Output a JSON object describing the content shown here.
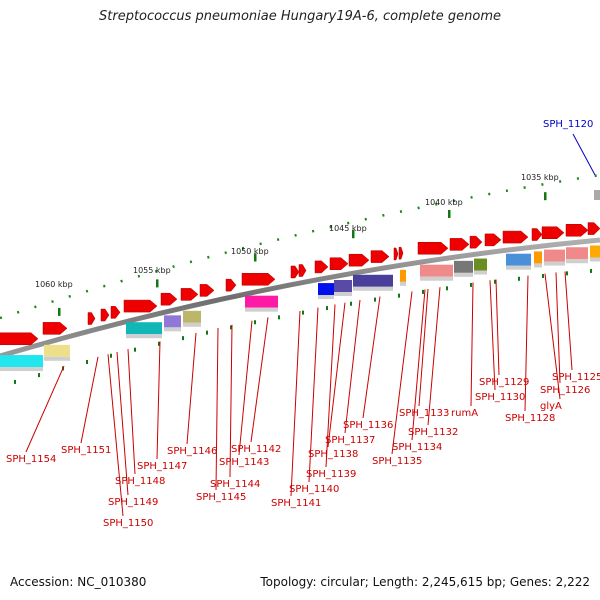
{
  "title": "Streptococcus pneumoniae Hungary19A-6, complete genome",
  "footer": {
    "accession": "Accession: NC_010380",
    "summary": "Topology: circular; Length: 2,245,615 bp; Genes: 2,222"
  },
  "highlight_label": "SPH_1120",
  "scale_labels": [
    "1035 kbp",
    "1040 kbp",
    "1045 kbp",
    "1050 kbp",
    "1055 kbp",
    "1060 kbp"
  ],
  "gene_labels": [
    "SPH_1125",
    "SPH_1126",
    "glyA",
    "SPH_1128",
    "SPH_1129",
    "SPH_1130",
    "rumA",
    "SPH_1132",
    "SPH_1133",
    "SPH_1134",
    "SPH_1135",
    "SPH_1136",
    "SPH_1137",
    "SPH_1138",
    "SPH_1139",
    "SPH_1140",
    "SPH_1141",
    "SPH_1142",
    "SPH_1143",
    "SPH_1144",
    "SPH_1145",
    "SPH_1146",
    "SPH_1147",
    "SPH_1148",
    "SPH_1149",
    "SPH_1150",
    "SPH_1151",
    "SPH_1154"
  ],
  "colors": {
    "gene": "#ee0000",
    "backbone": "#888888",
    "tick": "#117711",
    "label": "#cc0000",
    "highlight": "#0000cc"
  }
}
